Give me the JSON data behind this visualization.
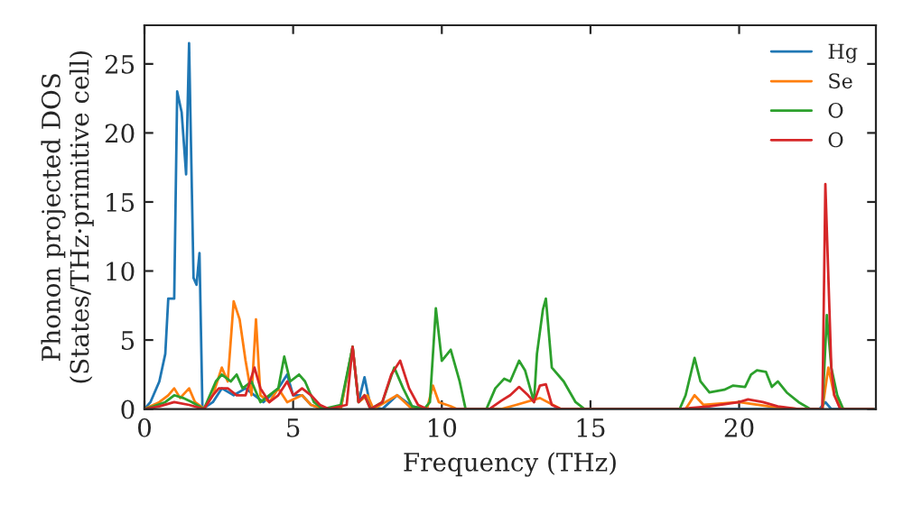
{
  "chart_data": {
    "type": "line",
    "xlabel": "Frequency (THz)",
    "ylabel": "Phonon projected DOS\n(States/THz·primitive cell)",
    "xlim": [
      0,
      24.6
    ],
    "ylim": [
      0,
      27.8
    ],
    "xticks": [
      0,
      5,
      10,
      15,
      20
    ],
    "yticks": [
      0,
      5,
      10,
      15,
      20,
      25
    ],
    "grid": false,
    "legend": "top right",
    "marker": "none",
    "line_style": "solid",
    "series": [
      {
        "name": "Hg",
        "color": "#1f77b4",
        "x": [
          0,
          0.2,
          0.5,
          0.7,
          0.8,
          1.0,
          1.1,
          1.25,
          1.4,
          1.5,
          1.65,
          1.75,
          1.85,
          1.95,
          2.3,
          2.6,
          3.0,
          3.4,
          3.7,
          4.0,
          4.5,
          4.8,
          5.0,
          5.3,
          5.6,
          6.0,
          6.6,
          7.0,
          7.2,
          7.4,
          7.6,
          8.0,
          8.5,
          9.0,
          9.5,
          22.7,
          22.9,
          23.1,
          24.5
        ],
        "values": [
          0,
          0.5,
          2,
          4,
          8,
          8,
          23,
          21.5,
          17,
          26.5,
          9.5,
          9,
          11.3,
          0,
          0.5,
          1.5,
          1.0,
          1.5,
          1.0,
          0.5,
          1.5,
          2.5,
          1.0,
          1.0,
          0.3,
          0,
          0,
          4.5,
          0.5,
          2.3,
          0.2,
          0,
          1.0,
          0.2,
          0,
          0,
          0.5,
          0,
          0
        ]
      },
      {
        "name": "Se",
        "color": "#ff7f0e",
        "x": [
          0,
          0.5,
          0.8,
          1.0,
          1.2,
          1.5,
          1.7,
          1.9,
          2.0,
          2.3,
          2.6,
          2.8,
          3.0,
          3.2,
          3.4,
          3.6,
          3.75,
          3.9,
          4.2,
          4.5,
          4.8,
          5.3,
          5.6,
          6.0,
          6.6,
          7.0,
          7.2,
          7.5,
          7.7,
          8.5,
          9.0,
          9.5,
          9.7,
          9.9,
          10.3,
          10.5,
          12.0,
          12.5,
          13.3,
          14.0,
          18.2,
          18.5,
          18.8,
          20.0,
          21.0,
          22.0,
          22.8,
          23.0,
          23.2,
          23.5,
          24.5
        ],
        "values": [
          0,
          0.5,
          1.0,
          1.5,
          0.8,
          1.5,
          0.5,
          0.2,
          0,
          1.0,
          3.0,
          2.0,
          7.8,
          6.5,
          3.5,
          1.0,
          6.5,
          1.0,
          0.5,
          1.5,
          0.5,
          1.0,
          0.3,
          0,
          0,
          4.5,
          0.5,
          1.0,
          0,
          1.0,
          0,
          0,
          1.7,
          0.5,
          0.2,
          0,
          0,
          0.3,
          0.8,
          0,
          0,
          1.0,
          0.3,
          0.5,
          0.2,
          0,
          0,
          3.0,
          1.0,
          0,
          0
        ]
      },
      {
        "name": "O",
        "color": "#2ca02c",
        "x": [
          0,
          0.3,
          0.7,
          1.0,
          1.3,
          1.6,
          2.0,
          2.4,
          2.6,
          2.9,
          3.1,
          3.3,
          3.6,
          3.9,
          4.5,
          4.7,
          4.9,
          5.2,
          5.4,
          5.7,
          6.0,
          6.6,
          7.0,
          7.2,
          7.4,
          7.6,
          8.0,
          8.4,
          8.7,
          9.0,
          9.4,
          9.6,
          9.8,
          10.0,
          10.3,
          10.6,
          10.8,
          11.5,
          11.8,
          12.1,
          12.3,
          12.6,
          12.8,
          13.1,
          13.2,
          13.4,
          13.5,
          13.7,
          14.1,
          14.5,
          14.8,
          18.0,
          18.2,
          18.5,
          18.7,
          19.0,
          19.5,
          19.8,
          20.2,
          20.4,
          20.6,
          20.9,
          21.1,
          21.3,
          21.6,
          22.0,
          22.4,
          22.8,
          22.95,
          23.1,
          23.3,
          23.5,
          24.5
        ],
        "values": [
          0,
          0.2,
          0.5,
          1.0,
          0.8,
          0.5,
          0,
          2.0,
          2.5,
          2.0,
          2.5,
          1.5,
          2.0,
          0.5,
          1.5,
          3.8,
          2.0,
          2.5,
          2.0,
          0.5,
          0,
          0.3,
          4.5,
          0.5,
          1.0,
          0,
          0.5,
          3.0,
          1.5,
          0.2,
          0,
          0.5,
          7.3,
          3.5,
          4.3,
          2.0,
          0,
          0,
          1.5,
          2.2,
          2.0,
          3.5,
          2.8,
          0.5,
          4.0,
          7.2,
          8.0,
          3.0,
          2.0,
          0.5,
          0,
          0,
          1.0,
          3.7,
          2.0,
          1.2,
          1.4,
          1.7,
          1.6,
          2.5,
          2.8,
          2.7,
          1.6,
          2.0,
          1.2,
          0.5,
          0,
          0,
          6.8,
          3.0,
          1.0,
          0,
          0
        ]
      },
      {
        "name": "O",
        "color": "#d62728",
        "x": [
          0,
          0.5,
          1.0,
          1.5,
          2.0,
          2.3,
          2.5,
          2.8,
          3.1,
          3.4,
          3.7,
          3.9,
          4.2,
          4.5,
          4.8,
          5.0,
          5.3,
          5.6,
          5.9,
          6.2,
          6.8,
          7.0,
          7.2,
          7.4,
          7.6,
          8.0,
          8.3,
          8.6,
          8.9,
          9.2,
          9.5,
          11.6,
          12.0,
          12.3,
          12.6,
          12.9,
          13.1,
          13.3,
          13.5,
          13.7,
          14.0,
          18.0,
          19.0,
          20.0,
          20.3,
          20.8,
          21.3,
          22.0,
          22.8,
          22.9,
          23.1,
          23.2,
          23.4,
          24.5
        ],
        "values": [
          0,
          0.2,
          0.5,
          0.3,
          0,
          1.0,
          1.5,
          1.5,
          1.0,
          1.0,
          3.0,
          1.5,
          0.5,
          1.0,
          2.0,
          1.0,
          1.5,
          1.0,
          0.3,
          0,
          0.3,
          4.5,
          0.5,
          1.0,
          0,
          0.5,
          2.5,
          3.5,
          1.5,
          0.3,
          0,
          0,
          0.6,
          1.0,
          1.6,
          1.0,
          0.5,
          1.7,
          1.8,
          0.3,
          0,
          0,
          0.2,
          0.5,
          0.7,
          0.5,
          0.2,
          0,
          0,
          16.3,
          3.0,
          1.0,
          0,
          0
        ]
      }
    ]
  }
}
